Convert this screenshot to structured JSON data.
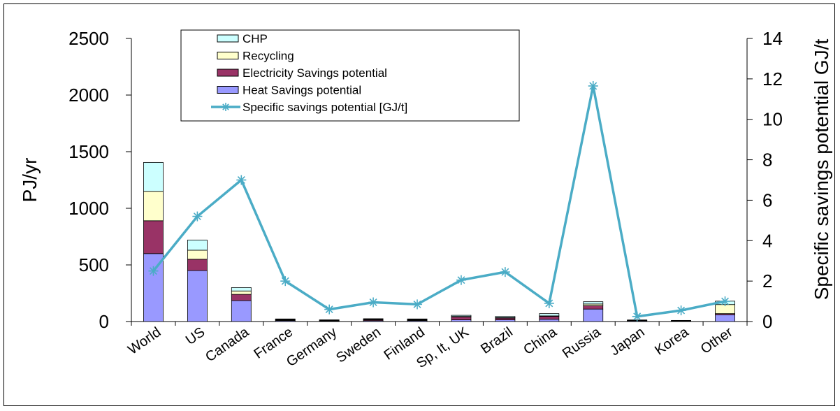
{
  "chart_data": {
    "type": "bar",
    "stacked": true,
    "categories": [
      "World",
      "US",
      "Canada",
      "France",
      "Germany",
      "Sweden",
      "Finland",
      "Sp, It, UK",
      "Brazil",
      "China",
      "Russia",
      "Japan",
      "Korea",
      "Other"
    ],
    "series": [
      {
        "name": "Heat Savings potential",
        "color": "#9999ff",
        "axis": "left",
        "values": [
          600,
          450,
          185,
          8,
          5,
          8,
          8,
          15,
          15,
          20,
          110,
          6,
          4,
          60
        ]
      },
      {
        "name": "Electricity Savings potential",
        "color": "#993366",
        "axis": "left",
        "values": [
          290,
          100,
          55,
          5,
          4,
          8,
          5,
          25,
          15,
          25,
          30,
          3,
          3,
          10
        ]
      },
      {
        "name": "Recycling",
        "color": "#ffffcc",
        "axis": "left",
        "values": [
          260,
          80,
          30,
          5,
          3,
          4,
          5,
          5,
          5,
          5,
          15,
          2,
          1,
          80
        ]
      },
      {
        "name": "CHP",
        "color": "#ccffff",
        "axis": "left",
        "values": [
          255,
          90,
          30,
          5,
          3,
          5,
          5,
          10,
          10,
          20,
          20,
          3,
          2,
          30
        ]
      },
      {
        "name": "Specific savings potential  [GJ/t]",
        "color": "#4bacc6",
        "axis": "right",
        "type": "line",
        "marker": "star",
        "values": [
          2.5,
          5.2,
          7.0,
          2.0,
          0.6,
          0.95,
          0.85,
          2.05,
          2.45,
          0.9,
          11.65,
          0.25,
          0.55,
          1.0
        ]
      }
    ],
    "ylabel": "PJ/yr",
    "ylabel_right": "Specific savings potential GJ/t",
    "ylim": [
      0,
      2500
    ],
    "ylim_right": [
      0,
      14
    ],
    "yticks": [
      "0",
      "500",
      "1000",
      "1500",
      "2000",
      "2500"
    ],
    "yticks_right": [
      "0",
      "2",
      "4",
      "6",
      "8",
      "10",
      "12",
      "14"
    ],
    "legend_position": "top-left",
    "grid": false
  }
}
